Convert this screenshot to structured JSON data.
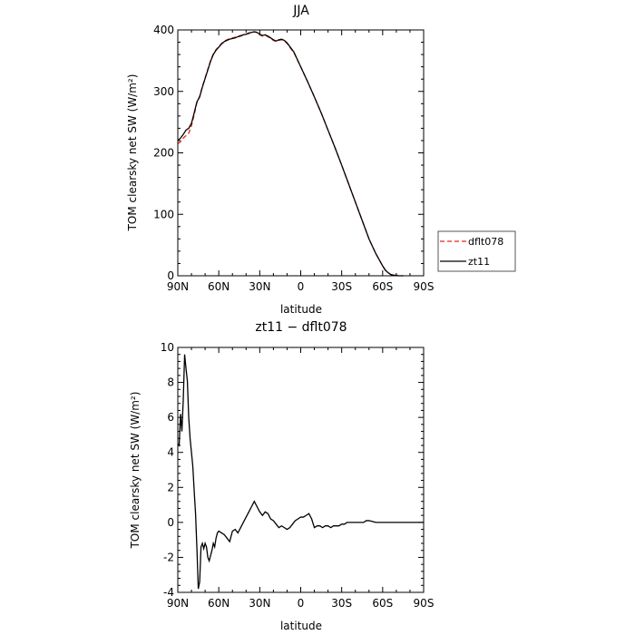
{
  "chart_data": [
    {
      "type": "line",
      "title": "JJA",
      "xlabel": "latitude",
      "ylabel": "TOM clearsky net SW (W/m²)",
      "ylim": [
        0,
        400
      ],
      "yticks": [
        0,
        100,
        200,
        300,
        400
      ],
      "xlim": [
        90,
        -90
      ],
      "xticks": [
        90,
        60,
        30,
        0,
        -30,
        -60,
        -90
      ],
      "xtick_labels": [
        "90N",
        "60N",
        "30N",
        "0",
        "30S",
        "60S",
        "90S"
      ],
      "legend": "right, outside",
      "series": [
        {
          "name": "dflt078",
          "color": "#e8261e",
          "dash": "dashed",
          "x": [
            90,
            88,
            86,
            84,
            82,
            80,
            78,
            76,
            74,
            72,
            70,
            68,
            66,
            64,
            62,
            60,
            58,
            56,
            54,
            52,
            50,
            48,
            46,
            44,
            42,
            40,
            38,
            36,
            34,
            32,
            30,
            28,
            26,
            24,
            22,
            20,
            18,
            16,
            14,
            12,
            10,
            5,
            0,
            -5,
            -10,
            -15,
            -20,
            -25,
            -30,
            -35,
            -40,
            -45,
            -50,
            -55,
            -60,
            -62,
            -64,
            -66,
            -68,
            -70,
            -72,
            -75
          ],
          "y": [
            215,
            218,
            224,
            228,
            232,
            244,
            262,
            282,
            292,
            308,
            322,
            336,
            350,
            361,
            368,
            373,
            378,
            382,
            384,
            386,
            387,
            388,
            390,
            391,
            392,
            393,
            394,
            396,
            397,
            396,
            392,
            390,
            391,
            389,
            386,
            383,
            381,
            383,
            384,
            382,
            378,
            363,
            340,
            316,
            291,
            265,
            237,
            209,
            180,
            150,
            120,
            90,
            60,
            36,
            16,
            9,
            5,
            2,
            1,
            0.5,
            0,
            0
          ]
        },
        {
          "name": "zt11",
          "color": "#000000",
          "dash": "solid",
          "x": [
            90,
            88,
            86,
            84,
            82,
            80,
            78,
            76,
            74,
            72,
            70,
            68,
            66,
            64,
            62,
            60,
            58,
            56,
            54,
            52,
            50,
            48,
            46,
            44,
            42,
            40,
            38,
            36,
            34,
            32,
            30,
            28,
            26,
            24,
            22,
            20,
            18,
            16,
            14,
            12,
            10,
            5,
            0,
            -5,
            -10,
            -15,
            -20,
            -25,
            -30,
            -35,
            -40,
            -45,
            -50,
            -55,
            -60,
            -62,
            -64,
            -66,
            -68,
            -70,
            -72,
            -75
          ],
          "y": [
            220,
            224,
            230,
            237,
            240,
            248,
            265,
            283,
            291,
            307,
            321,
            335,
            349,
            360,
            367,
            372,
            377,
            381,
            383,
            385,
            386,
            387,
            389,
            390,
            392,
            393,
            395,
            396,
            397,
            396,
            393,
            391,
            392,
            390,
            387,
            384,
            382,
            384,
            385,
            383,
            379,
            364,
            340,
            316,
            291,
            265,
            237,
            209,
            180,
            150,
            120,
            90,
            60,
            36,
            16,
            9,
            5,
            2,
            1,
            0.5,
            0,
            0
          ]
        }
      ]
    },
    {
      "type": "line",
      "title": "zt11 − dflt078",
      "xlabel": "latitude",
      "ylabel": "TOM clearsky net SW (W/m²)",
      "ylim": [
        -4,
        10
      ],
      "yticks": [
        -4,
        -2,
        0,
        2,
        4,
        6,
        8,
        10
      ],
      "xlim": [
        90,
        -90
      ],
      "xticks": [
        90,
        60,
        30,
        0,
        -30,
        -60,
        -90
      ],
      "xtick_labels": [
        "90N",
        "60N",
        "30N",
        "0",
        "30S",
        "60S",
        "90S"
      ],
      "series": [
        {
          "color": "#000000",
          "dash": "solid",
          "x": [
            90,
            89,
            88,
            87,
            86,
            85,
            84,
            83,
            82,
            81,
            80,
            79,
            78,
            77,
            76,
            75,
            74,
            73,
            72,
            71,
            70,
            69,
            68,
            67,
            66,
            65,
            64,
            63,
            62,
            61,
            60,
            58,
            56,
            54,
            52,
            50,
            48,
            46,
            44,
            42,
            40,
            38,
            36,
            34,
            32,
            30,
            28,
            26,
            24,
            22,
            20,
            18,
            16,
            14,
            12,
            10,
            8,
            6,
            4,
            2,
            0,
            -2,
            -4,
            -6,
            -8,
            -10,
            -12,
            -14,
            -16,
            -18,
            -20,
            -22,
            -24,
            -26,
            -28,
            -30,
            -32,
            -34,
            -36,
            -38,
            -40,
            -42,
            -44,
            -46,
            -48,
            -50,
            -55,
            -60,
            -65,
            -70,
            -75,
            -80,
            -85,
            -90
          ],
          "y": [
            4.5,
            4.4,
            6.2,
            5.2,
            7.0,
            9.6,
            8.8,
            8.1,
            6.0,
            4.8,
            4.0,
            3.2,
            1.8,
            0.5,
            -1.5,
            -3.8,
            -3.4,
            -1.4,
            -1.2,
            -1.5,
            -1.2,
            -1.4,
            -2.0,
            -2.2,
            -1.9,
            -1.6,
            -1.2,
            -1.4,
            -0.9,
            -0.6,
            -0.5,
            -0.6,
            -0.7,
            -0.9,
            -1.1,
            -0.5,
            -0.4,
            -0.6,
            -0.3,
            0.0,
            0.3,
            0.6,
            0.9,
            1.2,
            0.9,
            0.6,
            0.4,
            0.6,
            0.5,
            0.2,
            0.1,
            -0.1,
            -0.3,
            -0.2,
            -0.3,
            -0.4,
            -0.3,
            -0.1,
            0.1,
            0.2,
            0.3,
            0.3,
            0.4,
            0.5,
            0.2,
            -0.3,
            -0.2,
            -0.2,
            -0.3,
            -0.2,
            -0.2,
            -0.3,
            -0.2,
            -0.2,
            -0.2,
            -0.1,
            -0.1,
            0.0,
            0.0,
            0.0,
            0.0,
            0.0,
            0.0,
            0.0,
            0.1,
            0.1,
            0.0,
            0.0,
            0.0,
            0.0,
            0.0,
            0.0,
            0.0,
            0.0
          ]
        }
      ]
    }
  ]
}
